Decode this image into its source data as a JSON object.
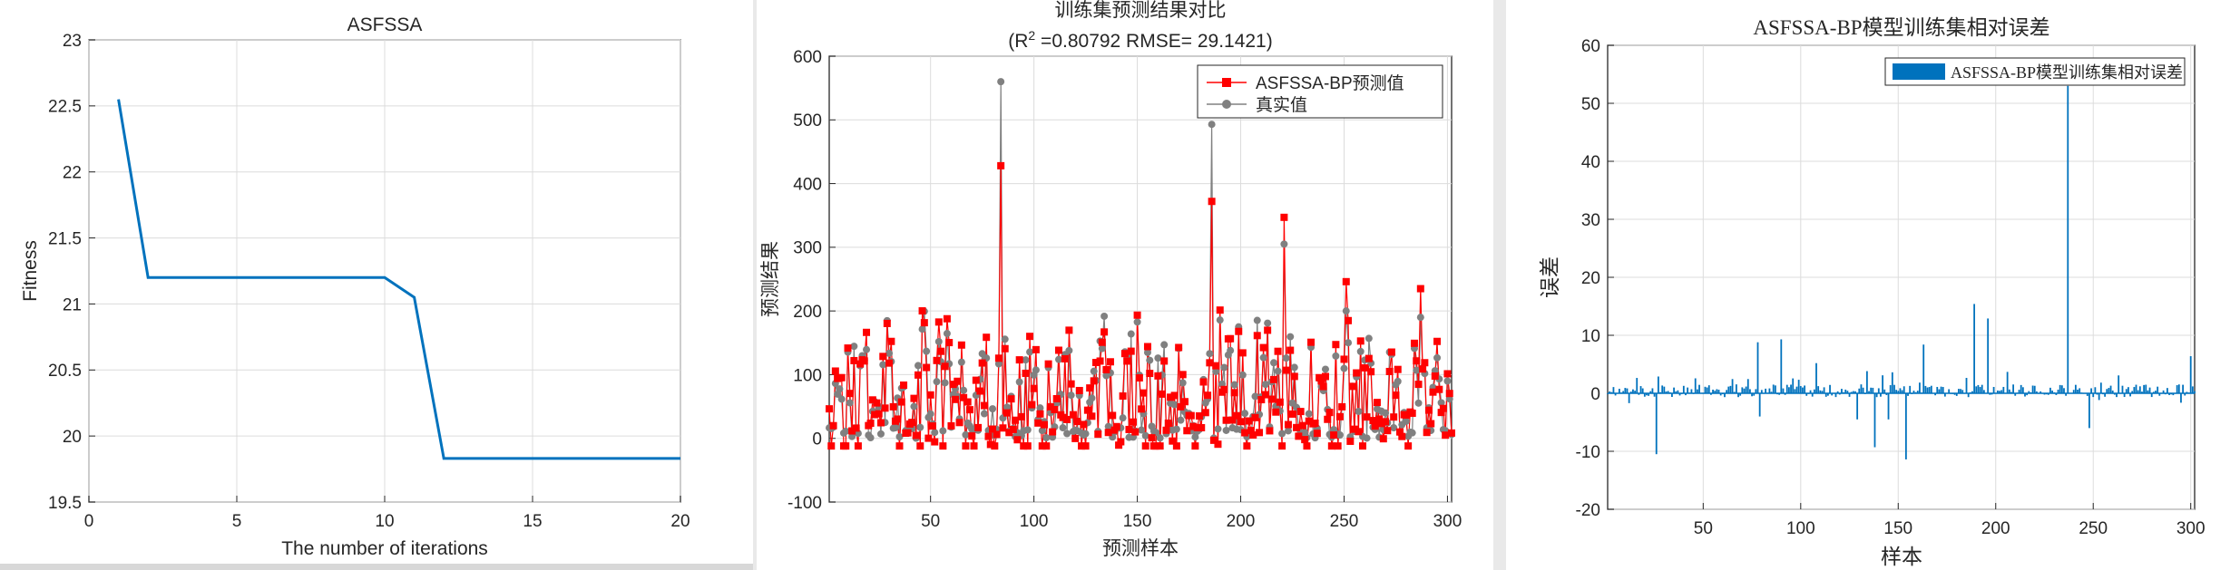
{
  "chart_data": [
    {
      "type": "line",
      "title": "ASFSSA",
      "xlabel": "The number of iterations",
      "ylabel": "Fitness",
      "xlim": [
        0,
        20
      ],
      "ylim": [
        19.5,
        23
      ],
      "xticks": [
        "0",
        "5",
        "10",
        "15",
        "20"
      ],
      "yticks": [
        "19.5",
        "20",
        "20.5",
        "21",
        "21.5",
        "22",
        "22.5",
        "23"
      ],
      "x": [
        1,
        2,
        3,
        4,
        5,
        6,
        7,
        8,
        9,
        10,
        11,
        12,
        13,
        14,
        15,
        16,
        17,
        18,
        19,
        20
      ],
      "series": [
        {
          "values": [
            22.55,
            21.2,
            21.2,
            21.2,
            21.2,
            21.2,
            21.2,
            21.2,
            21.2,
            21.2,
            21.05,
            19.83,
            19.83,
            19.83,
            19.83,
            19.83,
            19.83,
            19.83,
            19.83,
            19.83
          ],
          "color": "#0072BD"
        }
      ],
      "grid": true
    },
    {
      "type": "line",
      "title": "训练集预测结果对比",
      "subtitle": "(R",
      "subtitle_sup": "2",
      "subtitle_rest": " =0.80792 RMSE= 29.1421)",
      "xlabel": "预测样本",
      "ylabel": "预测结果",
      "xlim": [
        1,
        302
      ],
      "ylim": [
        -100,
        600
      ],
      "xticks": [
        "50",
        "100",
        "150",
        "200",
        "250",
        "300"
      ],
      "yticks": [
        "-100",
        "0",
        "100",
        "200",
        "300",
        "400",
        "500",
        "600"
      ],
      "legend_position": "top-right",
      "series": [
        {
          "name": "ASFSSA-BP预测值",
          "color": "#FF0000",
          "marker": "square"
        },
        {
          "name": "真实值",
          "color": "#808080",
          "marker": "circle"
        }
      ],
      "peaks": [
        {
          "x": 84,
          "predicted": 428,
          "actual": 560
        },
        {
          "x": 186,
          "predicted": 372,
          "actual": 493
        },
        {
          "x": 221,
          "predicted": 347,
          "actual": 305
        },
        {
          "x": 251,
          "predicted": 246,
          "actual": 200
        },
        {
          "x": 287,
          "predicted": 235,
          "actual": 190
        }
      ],
      "n_samples": 302,
      "grid": true
    },
    {
      "type": "bar",
      "title": "ASFSSA-BP模型训练集相对误差",
      "xlabel": "样本",
      "ylabel": "误差",
      "xlim": [
        1,
        302
      ],
      "ylim": [
        -20,
        60
      ],
      "xticks": [
        "50",
        "100",
        "150",
        "200",
        "250",
        "300"
      ],
      "yticks": [
        "-20",
        "-10",
        "0",
        "10",
        "20",
        "30",
        "40",
        "50",
        "60"
      ],
      "legend_position": "top-right",
      "series": [
        {
          "name": "ASFSSA-BP模型训练集相对误差",
          "color": "#0072BD"
        }
      ],
      "notable_errors": [
        {
          "x": 26,
          "value": -10.5
        },
        {
          "x": 78,
          "value": 8.8
        },
        {
          "x": 79,
          "value": -4
        },
        {
          "x": 90,
          "value": 9.3
        },
        {
          "x": 108,
          "value": 5.2
        },
        {
          "x": 129,
          "value": -4.5
        },
        {
          "x": 138,
          "value": -9.3
        },
        {
          "x": 145,
          "value": -4.5
        },
        {
          "x": 154,
          "value": -11.4
        },
        {
          "x": 163,
          "value": 8.4
        },
        {
          "x": 189,
          "value": 15.4
        },
        {
          "x": 196,
          "value": 12.9
        },
        {
          "x": 237,
          "value": 53
        },
        {
          "x": 248,
          "value": -6
        },
        {
          "x": 300,
          "value": 6.4
        }
      ],
      "n_samples": 302,
      "grid": true
    }
  ]
}
